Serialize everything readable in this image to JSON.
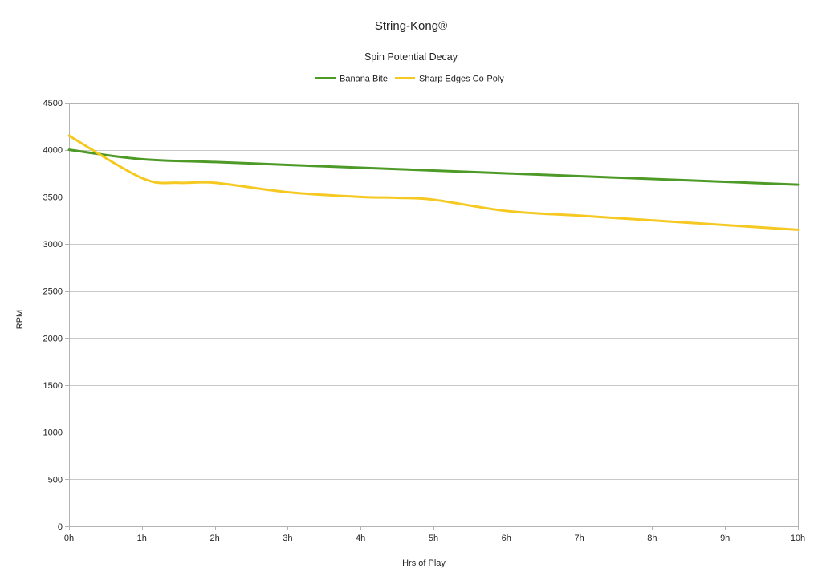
{
  "chart_data": {
    "type": "line",
    "title": "String-Kong®",
    "subtitle": "Spin Potential Decay",
    "xlabel": "Hrs of Play",
    "ylabel": "RPM",
    "x_labels": [
      "0h",
      "1h",
      "2h",
      "3h",
      "4h",
      "5h",
      "6h",
      "7h",
      "8h",
      "9h",
      "10h"
    ],
    "y_ticks": [
      0,
      500,
      1000,
      1500,
      2000,
      2500,
      3000,
      3500,
      4000,
      4500
    ],
    "ylim": [
      0,
      4500
    ],
    "xlim": [
      0,
      10
    ],
    "grid": "horizontal",
    "legend_position": "top",
    "series": [
      {
        "name": "Banana Bite",
        "color": "#4e9a27",
        "x": [
          0,
          1,
          2,
          3,
          4,
          5,
          6,
          7,
          8,
          9,
          10
        ],
        "values": [
          4000,
          3900,
          3870,
          3840,
          3810,
          3780,
          3750,
          3720,
          3690,
          3660,
          3630
        ]
      },
      {
        "name": "Sharp Edges Co-Poly",
        "color": "#f5c922",
        "x": [
          0,
          1,
          1.5,
          2,
          3,
          4,
          4.5,
          5,
          6,
          7,
          8,
          9,
          10
        ],
        "values": [
          4150,
          3700,
          3650,
          3650,
          3550,
          3500,
          3490,
          3470,
          3350,
          3300,
          3250,
          3200,
          3150
        ]
      }
    ]
  }
}
